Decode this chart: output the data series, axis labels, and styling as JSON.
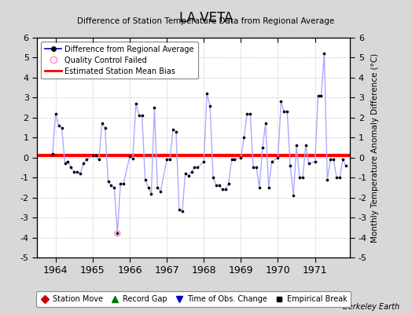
{
  "title": "LA VETA",
  "subtitle": "Difference of Station Temperature Data from Regional Average",
  "ylabel": "Monthly Temperature Anomaly Difference (°C)",
  "bias": 0.1,
  "ylim": [
    -5,
    6
  ],
  "xlim": [
    1963.5,
    1971.95
  ],
  "xticks": [
    1964,
    1965,
    1966,
    1967,
    1968,
    1969,
    1970,
    1971
  ],
  "yticks": [
    -5,
    -4,
    -3,
    -2,
    -1,
    0,
    1,
    2,
    3,
    4,
    5,
    6
  ],
  "background_color": "#d8d8d8",
  "plot_bg_color": "#ffffff",
  "line_color": "#aaaaff",
  "bias_color": "#ff0000",
  "marker_color": "#000000",
  "qc_fail_color": "#ff88cc",
  "grid_color": "#cccccc",
  "watermark": "Berkeley Earth",
  "data": {
    "x": [
      1963.917,
      1964.0,
      1964.083,
      1964.167,
      1964.25,
      1964.333,
      1964.417,
      1964.5,
      1964.583,
      1964.667,
      1964.75,
      1964.833,
      1965.0,
      1965.083,
      1965.167,
      1965.25,
      1965.333,
      1965.417,
      1965.5,
      1965.583,
      1965.667,
      1965.75,
      1965.833,
      1966.0,
      1966.083,
      1966.167,
      1966.25,
      1966.333,
      1966.417,
      1966.5,
      1966.583,
      1966.667,
      1966.75,
      1966.833,
      1967.0,
      1967.083,
      1967.167,
      1967.25,
      1967.333,
      1967.417,
      1967.5,
      1967.583,
      1967.667,
      1967.75,
      1967.833,
      1968.0,
      1968.083,
      1968.167,
      1968.25,
      1968.333,
      1968.417,
      1968.5,
      1968.583,
      1968.667,
      1968.75,
      1968.833,
      1969.0,
      1969.083,
      1969.167,
      1969.25,
      1969.333,
      1969.417,
      1969.5,
      1969.583,
      1969.667,
      1969.75,
      1969.833,
      1970.0,
      1970.083,
      1970.167,
      1970.25,
      1970.333,
      1970.417,
      1970.5,
      1970.583,
      1970.667,
      1970.75,
      1970.833,
      1971.0,
      1971.083,
      1971.167,
      1971.25,
      1971.333,
      1971.417,
      1971.5,
      1971.583,
      1971.667,
      1971.75,
      1971.833
    ],
    "y": [
      0.2,
      2.2,
      1.6,
      1.5,
      -0.3,
      -0.2,
      -0.5,
      -0.7,
      -0.7,
      -0.8,
      -0.3,
      -0.1,
      0.1,
      0.1,
      -0.1,
      1.7,
      1.5,
      -1.2,
      -1.4,
      -1.5,
      -3.8,
      -1.3,
      -1.3,
      0.05,
      -0.05,
      2.7,
      2.1,
      2.1,
      -1.1,
      -1.5,
      -1.8,
      2.5,
      -1.5,
      -1.7,
      -0.1,
      -0.1,
      1.4,
      1.3,
      -2.6,
      -2.7,
      -0.8,
      -0.9,
      -0.7,
      -0.5,
      -0.5,
      -0.2,
      3.2,
      2.6,
      -1.0,
      -1.4,
      -1.4,
      -1.6,
      -1.6,
      -1.3,
      -0.1,
      -0.1,
      0.0,
      1.0,
      2.2,
      2.2,
      -0.5,
      -0.5,
      -1.5,
      0.5,
      1.7,
      -1.5,
      -0.2,
      0.0,
      2.8,
      2.3,
      2.3,
      -0.4,
      -1.9,
      0.6,
      -1.0,
      -1.0,
      0.6,
      -0.3,
      -0.2,
      3.1,
      3.1,
      5.2,
      -1.1,
      -0.1,
      -0.1,
      -1.0,
      -1.0,
      -0.1,
      -0.4
    ]
  },
  "qc_fail_points": {
    "x": [
      1965.667
    ],
    "y": [
      -3.8
    ]
  }
}
